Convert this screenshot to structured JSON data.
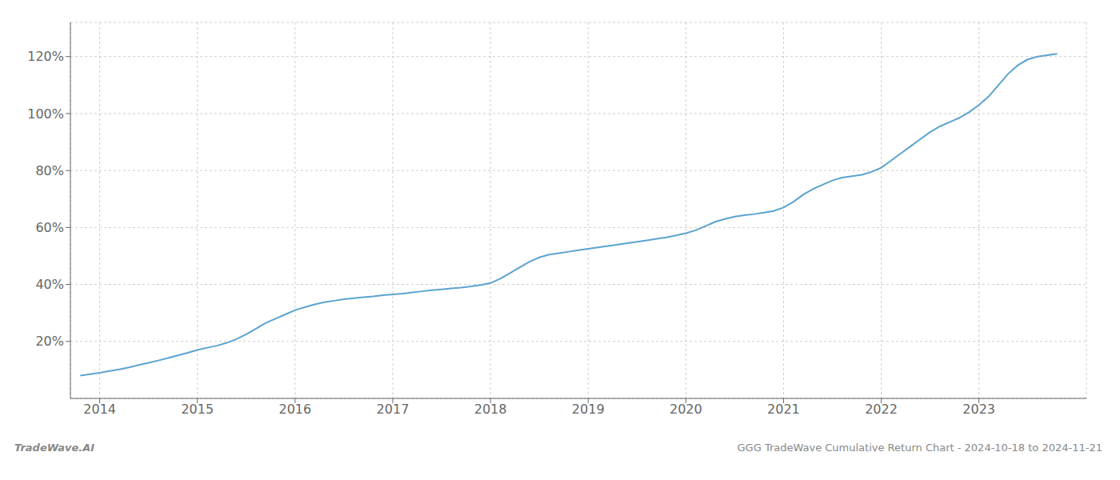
{
  "chart_data": {
    "type": "line",
    "title": "GGG TradeWave Cumulative Return Chart - 2024-10-18 to 2024-11-21",
    "annotations": [
      "TradeWave.AI"
    ],
    "color": "#5ba3d0",
    "grid": true,
    "x": [
      2013.8,
      2013.9,
      2014.0,
      2014.1,
      2014.2,
      2014.3,
      2014.4,
      2014.5,
      2014.6,
      2014.7,
      2014.8,
      2014.9,
      2015.0,
      2015.1,
      2015.2,
      2015.3,
      2015.4,
      2015.5,
      2015.6,
      2015.7,
      2015.8,
      2015.9,
      2016.0,
      2016.1,
      2016.2,
      2016.3,
      2016.4,
      2016.5,
      2016.6,
      2016.7,
      2016.8,
      2016.9,
      2017.0,
      2017.1,
      2017.2,
      2017.3,
      2017.4,
      2017.5,
      2017.6,
      2017.7,
      2017.8,
      2017.9,
      2018.0,
      2018.1,
      2018.2,
      2018.3,
      2018.4,
      2018.5,
      2018.6,
      2018.7,
      2018.8,
      2018.9,
      2019.0,
      2019.1,
      2019.2,
      2019.3,
      2019.4,
      2019.5,
      2019.6,
      2019.7,
      2019.8,
      2019.9,
      2020.0,
      2020.1,
      2020.2,
      2020.3,
      2020.4,
      2020.5,
      2020.6,
      2020.7,
      2020.8,
      2020.9,
      2021.0,
      2021.1,
      2021.2,
      2021.3,
      2021.4,
      2021.5,
      2021.6,
      2021.7,
      2021.8,
      2021.9,
      2022.0,
      2022.1,
      2022.2,
      2022.3,
      2022.4,
      2022.5,
      2022.6,
      2022.7,
      2022.8,
      2022.9,
      2023.0,
      2023.1,
      2023.2,
      2023.3,
      2023.4,
      2023.5,
      2023.6,
      2023.7,
      2023.8
    ],
    "values": [
      8.0,
      8.5,
      9.0,
      9.6,
      10.2,
      10.9,
      11.7,
      12.5,
      13.3,
      14.2,
      15.1,
      16.0,
      17.0,
      17.8,
      18.5,
      19.5,
      20.8,
      22.5,
      24.5,
      26.5,
      28.0,
      29.5,
      31.0,
      32.0,
      33.0,
      33.8,
      34.3,
      34.8,
      35.2,
      35.5,
      35.8,
      36.2,
      36.5,
      36.8,
      37.2,
      37.6,
      38.0,
      38.3,
      38.6,
      38.9,
      39.3,
      39.8,
      40.5,
      42.0,
      44.0,
      46.0,
      48.0,
      49.5,
      50.5,
      51.0,
      51.5,
      52.0,
      52.5,
      53.0,
      53.5,
      54.0,
      54.5,
      55.0,
      55.5,
      56.0,
      56.5,
      57.2,
      58.0,
      59.0,
      60.5,
      62.0,
      63.0,
      63.8,
      64.3,
      64.7,
      65.2,
      65.8,
      67.0,
      69.0,
      71.5,
      73.5,
      75.0,
      76.5,
      77.5,
      78.0,
      78.5,
      79.5,
      81.0,
      83.5,
      86.0,
      88.5,
      91.0,
      93.5,
      95.5,
      97.0,
      98.5,
      100.5,
      103.0,
      106.0,
      110.0,
      114.0,
      117.0,
      119.0,
      120.0,
      120.5,
      121.0
    ],
    "xlim": [
      2013.7,
      2024.1
    ],
    "xticks": [
      2014,
      2015,
      2016,
      2017,
      2018,
      2019,
      2020,
      2021,
      2022,
      2023
    ],
    "ylim": [
      0,
      132
    ],
    "yticks": [
      {
        "value": 20,
        "label": "20%"
      },
      {
        "value": 40,
        "label": "40%"
      },
      {
        "value": 60,
        "label": "60%"
      },
      {
        "value": 80,
        "label": "80%"
      },
      {
        "value": 100,
        "label": "100%"
      },
      {
        "value": 120,
        "label": "120%"
      }
    ]
  }
}
